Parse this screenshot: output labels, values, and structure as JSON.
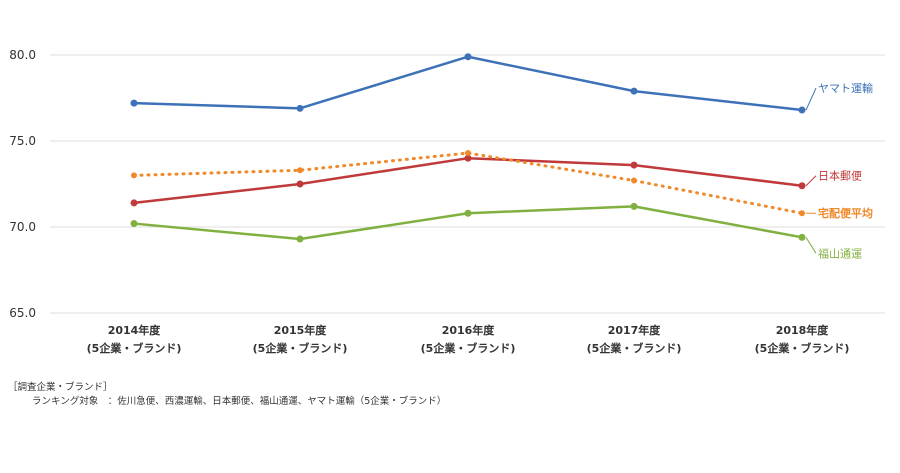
{
  "chart_data": {
    "type": "line",
    "categories": [
      [
        "2014年度",
        "(5企業・ブランド)"
      ],
      [
        "2015年度",
        "(5企業・ブランド)"
      ],
      [
        "2016年度",
        "(5企業・ブランド)"
      ],
      [
        "2017年度",
        "(5企業・ブランド)"
      ],
      [
        "2018年度",
        "(5企業・ブランド)"
      ]
    ],
    "ylim": [
      65,
      80
    ],
    "yticks": [
      "65.0",
      "70.0",
      "75.0",
      "80.0"
    ],
    "ytick_values": [
      65,
      70,
      75,
      80
    ],
    "grid": true,
    "legend": "inline-right",
    "series": [
      {
        "name": "ヤマト運輸",
        "values": [
          77.2,
          76.9,
          79.9,
          77.9,
          76.8
        ],
        "color": "#3d71b8",
        "dashed": false,
        "bold": false
      },
      {
        "name": "日本郵便",
        "values": [
          71.4,
          72.5,
          74.0,
          73.6,
          72.4
        ],
        "color": "#c0393b",
        "dashed": false,
        "bold": false
      },
      {
        "name": "宅配便平均",
        "values": [
          73.0,
          73.3,
          74.3,
          72.7,
          70.8
        ],
        "color": "#f0892a",
        "dashed": true,
        "bold": true
      },
      {
        "name": "福山通運",
        "values": [
          70.2,
          69.3,
          70.8,
          71.2,
          69.4
        ],
        "color": "#80b040",
        "dashed": false,
        "bold": false
      }
    ]
  },
  "footnote": {
    "line1": "［調査企業・ブランド］",
    "line2": "ランキング対象　：佐川急便、西濃運輸、日本郵便、福山通運、ヤマト運輸（5企業・ブランド）"
  }
}
